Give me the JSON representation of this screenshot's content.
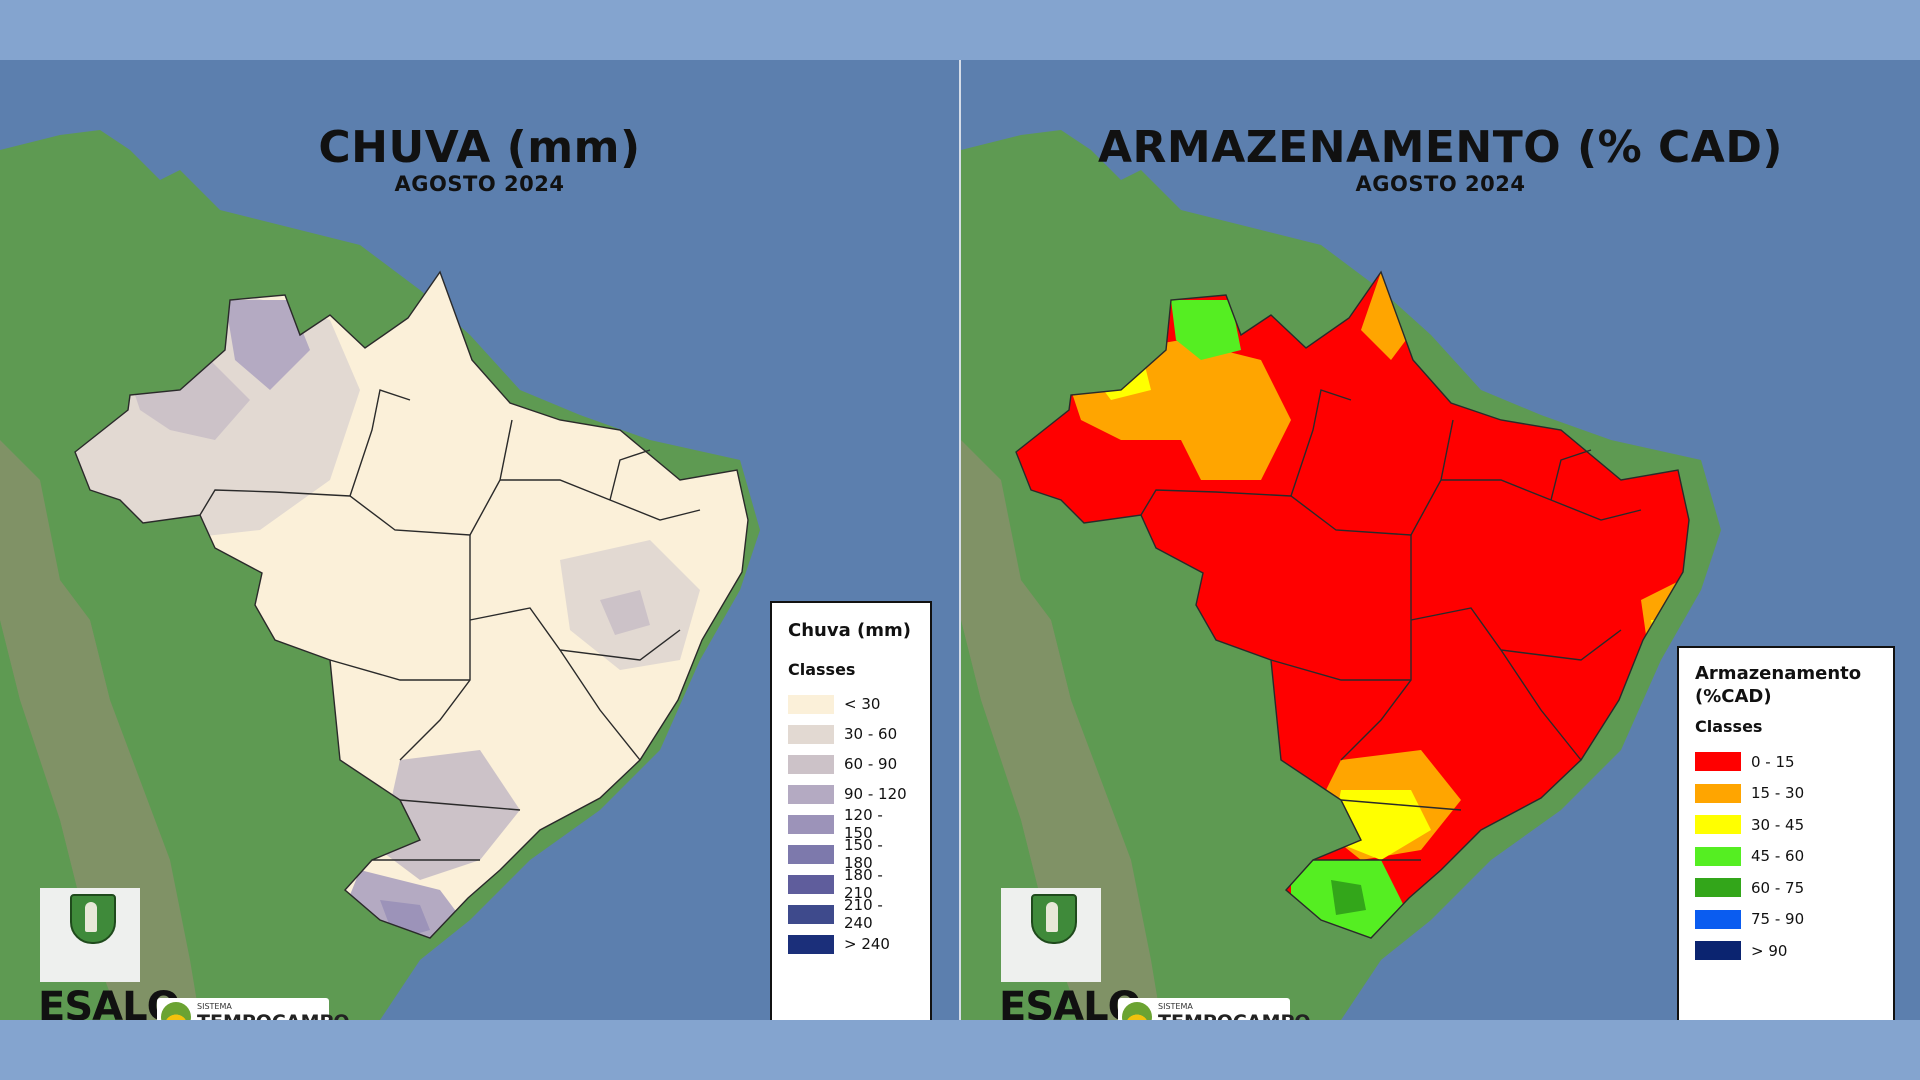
{
  "left_panel": {
    "title": "CHUVA (mm)",
    "subtitle": "AGOSTO 2024",
    "legend": {
      "title": "Chuva (mm)",
      "subtitle": "Classes",
      "classes": [
        {
          "label": "< 30",
          "color": "#fbf0d9"
        },
        {
          "label": "30 - 60",
          "color": "#e2d9d2"
        },
        {
          "label": "60 - 90",
          "color": "#ccc2c8"
        },
        {
          "label": "90 - 120",
          "color": "#b4aac2"
        },
        {
          "label": "120 - 150",
          "color": "#9c93b9"
        },
        {
          "label": "150 - 180",
          "color": "#7d79ac"
        },
        {
          "label": "180 - 210",
          "color": "#5f5d9c"
        },
        {
          "label": "210 - 240",
          "color": "#3e4a8c"
        },
        {
          "label": "> 240",
          "color": "#1b2f7a"
        }
      ]
    }
  },
  "right_panel": {
    "title": "ARMAZENAMENTO (% CAD)",
    "subtitle": "AGOSTO 2024",
    "legend": {
      "title": "Armazenamento (%CAD)",
      "subtitle": "Classes",
      "classes": [
        {
          "label": "0 - 15",
          "color": "#ff0000"
        },
        {
          "label": "15 - 30",
          "color": "#ffa500"
        },
        {
          "label": "30 - 45",
          "color": "#ffff00"
        },
        {
          "label": "45 - 60",
          "color": "#55ee22"
        },
        {
          "label": "60 - 75",
          "color": "#33a61a"
        },
        {
          "label": "75 - 90",
          "color": "#0a5cf0"
        },
        {
          "label": "> 90",
          "color": "#0b2470"
        }
      ]
    }
  },
  "logos": {
    "esalq": "ESALQ",
    "tempocampo_small": "SISTEMA",
    "tempocampo_big": "TEMPOCAMPO"
  },
  "colors": {
    "ocean": "#5c7fae",
    "land": "#5e9a52",
    "border_lines": "#2a2a2a"
  }
}
